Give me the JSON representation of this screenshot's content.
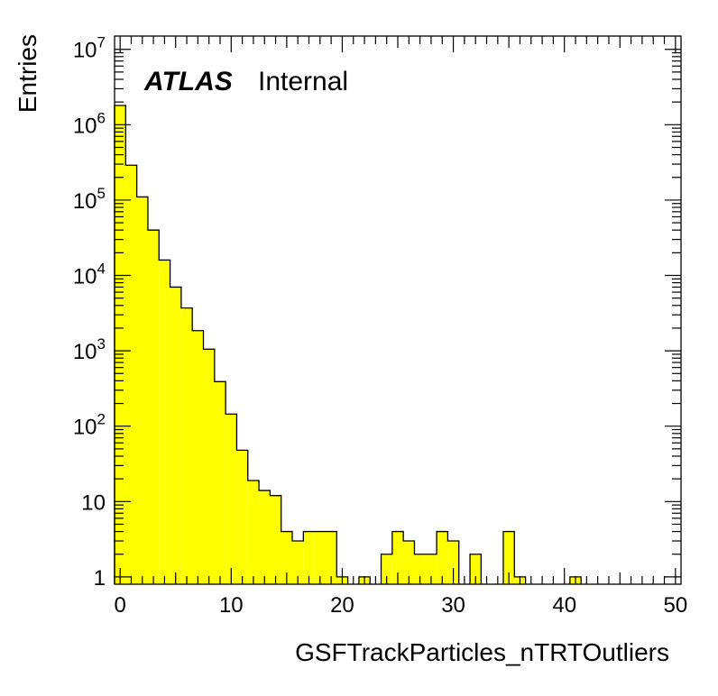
{
  "chart_data": {
    "type": "bar",
    "xlabel": "GSFTrackParticles_nTRTOutliers",
    "ylabel": "Entries",
    "xlim": [
      -0.5,
      50.5
    ],
    "ylim": [
      0.8,
      15000000
    ],
    "yscale": "log",
    "fill_color": "#ffff00",
    "edge_color": "#000000",
    "bin_width": 1,
    "x_ticks": [
      "0",
      "10",
      "20",
      "30",
      "40",
      "50"
    ],
    "y_ticks": [
      "1",
      "10",
      "10^2",
      "10^3",
      "10^4",
      "10^5",
      "10^6",
      "10^7"
    ],
    "annotation_atlas": "ATLAS",
    "annotation_status": "Internal",
    "x": [
      0,
      1,
      2,
      3,
      4,
      5,
      6,
      7,
      8,
      9,
      10,
      11,
      12,
      13,
      14,
      15,
      16,
      17,
      18,
      19,
      20,
      21,
      22,
      23,
      24,
      25,
      26,
      27,
      28,
      29,
      30,
      31,
      32,
      33,
      34,
      35,
      36,
      37,
      38,
      39,
      40,
      41,
      42,
      43,
      44,
      45,
      46,
      47,
      48,
      49,
      50
    ],
    "values": [
      1800000,
      290000,
      110000,
      40000,
      16000,
      7000,
      3700,
      1850,
      1050,
      390,
      145,
      48,
      19,
      14,
      12,
      4,
      3,
      4,
      4,
      4,
      1,
      0,
      1,
      0,
      2,
      4,
      3,
      2,
      2,
      4,
      3,
      0,
      2,
      0,
      0,
      4,
      1,
      0,
      0,
      0,
      0,
      1,
      0,
      0,
      0,
      0,
      0,
      0,
      0,
      0,
      0
    ]
  }
}
